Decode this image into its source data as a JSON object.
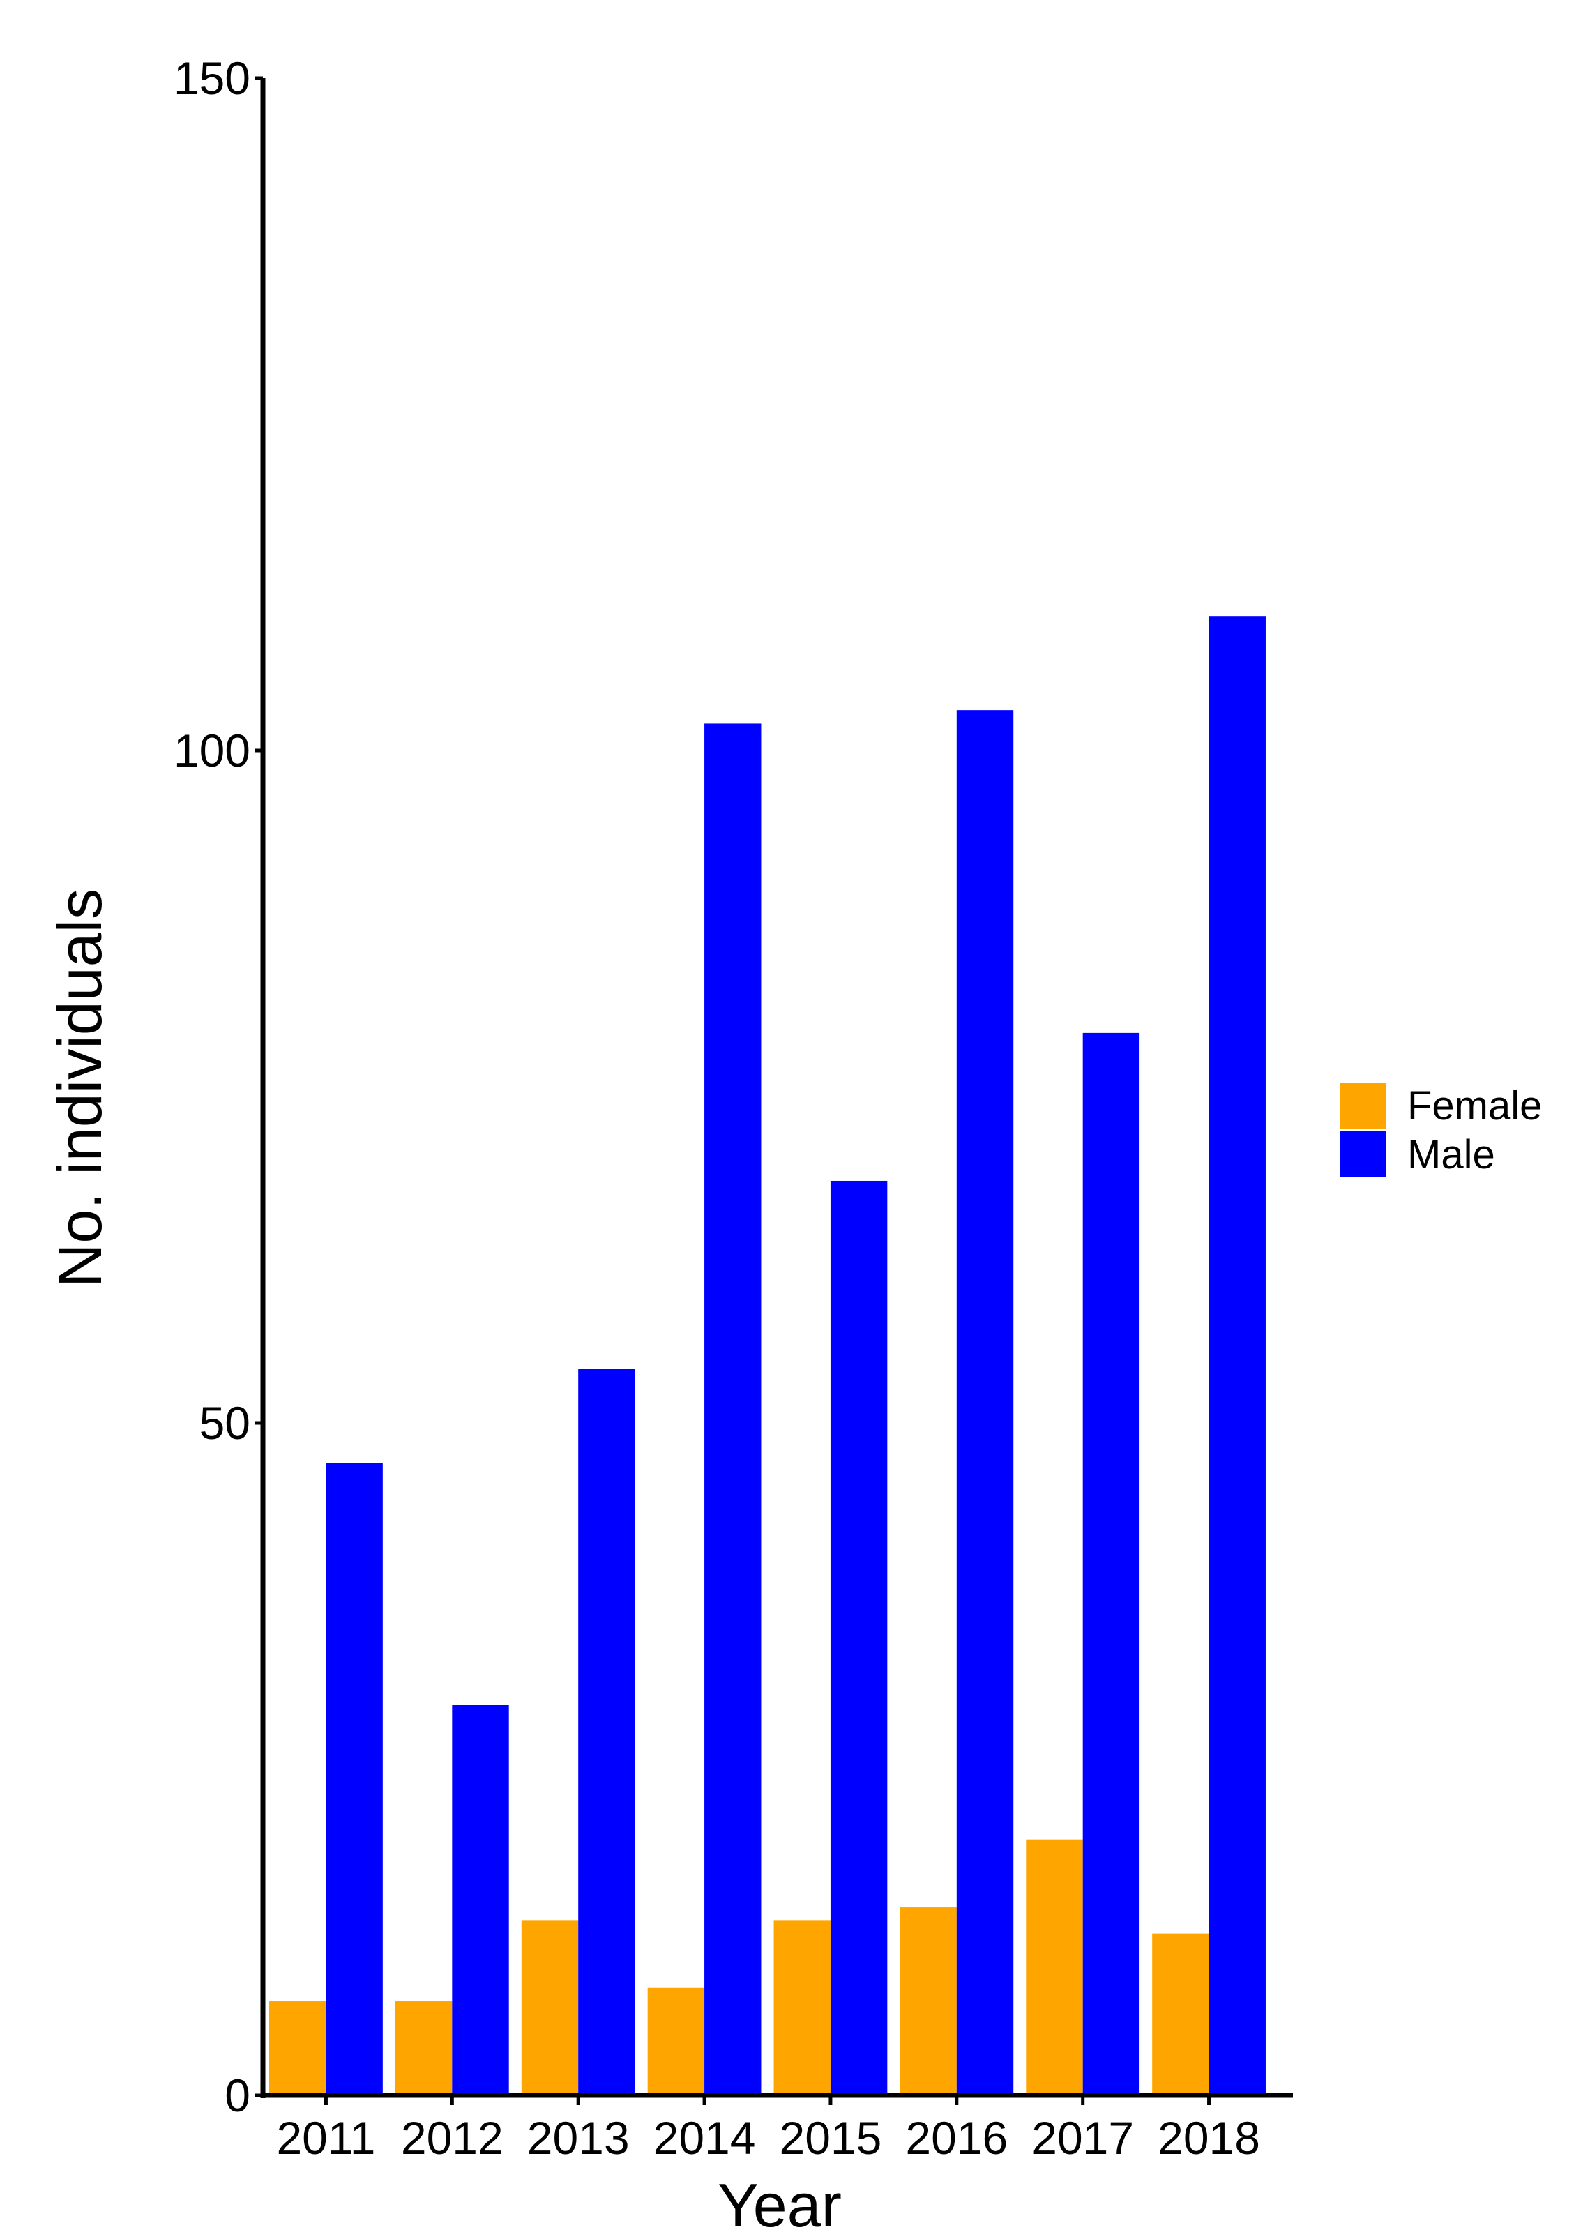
{
  "chart_data": {
    "type": "bar",
    "title": "",
    "xlabel": "Year",
    "ylabel": "No. individuals",
    "categories": [
      "2011",
      "2012",
      "2013",
      "2014",
      "2015",
      "2016",
      "2017",
      "2018"
    ],
    "series": [
      {
        "name": "Female",
        "color": "#FFA500",
        "values": [
          7,
          7,
          13,
          8,
          13,
          14,
          19,
          12
        ]
      },
      {
        "name": "Male",
        "color": "#0000FF",
        "values": [
          47,
          29,
          54,
          102,
          68,
          103,
          79,
          110
        ]
      }
    ],
    "ylim": [
      0,
      150
    ],
    "yticks": [
      "0",
      "50",
      "100",
      "150"
    ],
    "grid": false,
    "legend": {
      "position": "right",
      "entries": [
        "Female",
        "Male"
      ]
    }
  }
}
